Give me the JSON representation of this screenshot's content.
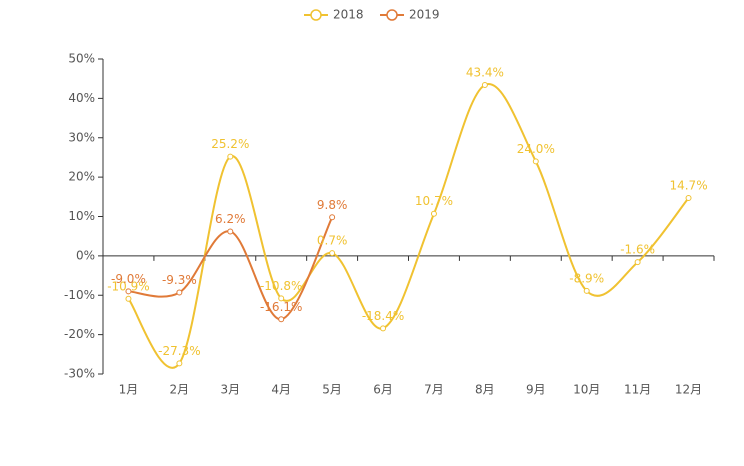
{
  "chart_data": {
    "type": "line",
    "categories": [
      "1月",
      "2月",
      "3月",
      "4月",
      "5月",
      "6月",
      "7月",
      "8月",
      "9月",
      "10月",
      "11月",
      "12月"
    ],
    "series": [
      {
        "name": "2018",
        "color": "#f0c231",
        "values": [
          -10.9,
          -27.3,
          25.2,
          -10.8,
          0.7,
          -18.4,
          10.7,
          43.4,
          24.0,
          -8.9,
          -1.6,
          14.7
        ],
        "value_labels": [
          "-10.9%",
          "-27.3%",
          "25.2%",
          "-10.8%",
          "0.7%",
          "-18.4%",
          "10.7%",
          "43.4%",
          "24.0%",
          "-8.9%",
          "-1.6%",
          "14.7%"
        ]
      },
      {
        "name": "2019",
        "color": "#e07a38",
        "values": [
          -9.0,
          -9.3,
          6.2,
          -16.1,
          9.8,
          null,
          null,
          null,
          null,
          null,
          null,
          null
        ],
        "value_labels": [
          "-9.0%",
          "-9.3%",
          "6.2%",
          "-16.1%",
          "9.8%",
          null,
          null,
          null,
          null,
          null,
          null,
          null
        ]
      }
    ],
    "ylim": [
      -30,
      50
    ],
    "yticks": [
      {
        "value": -30,
        "label": "-30%"
      },
      {
        "value": -20,
        "label": "-20%"
      },
      {
        "value": -10,
        "label": "-10%"
      },
      {
        "value": 0,
        "label": "0%"
      },
      {
        "value": 10,
        "label": "10%"
      },
      {
        "value": 20,
        "label": "20%"
      },
      {
        "value": 30,
        "label": "30%"
      },
      {
        "value": 40,
        "label": "40%"
      },
      {
        "value": 50,
        "label": "50%"
      }
    ],
    "legend": "top",
    "smooth": true
  }
}
